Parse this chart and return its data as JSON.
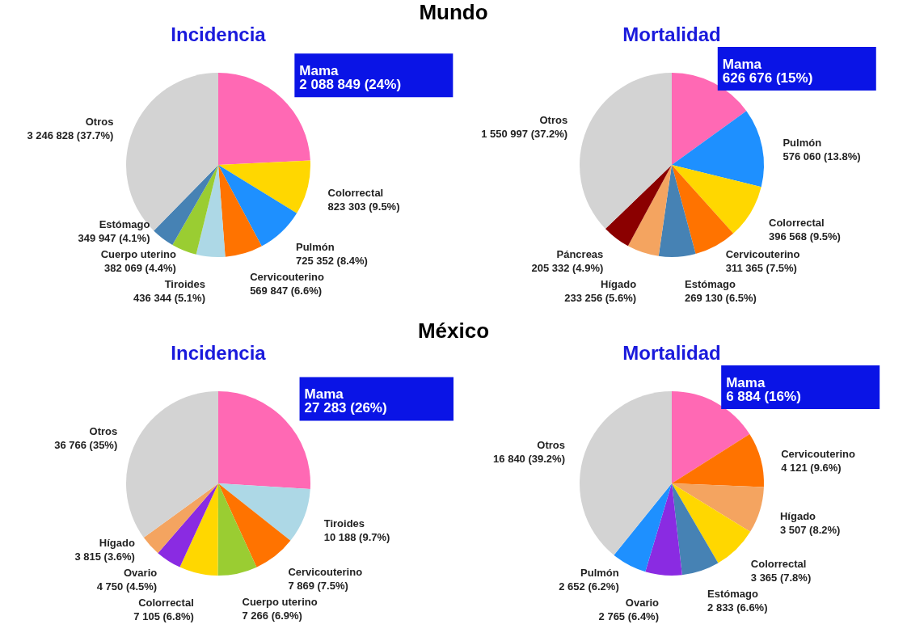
{
  "chart_data": [
    {
      "type": "pie",
      "title": "Incidencia",
      "annotations": [
        "Mundo"
      ],
      "categories": [
        "Mama",
        "Colorrectal",
        "Pulmón",
        "Cervicouterino",
        "Tiroides",
        "Cuerpo uterino",
        "Estómago",
        "Otros"
      ],
      "values": [
        2088849,
        823303,
        725352,
        569847,
        436344,
        382069,
        349947,
        3246828
      ],
      "value_labels": [
        "2 088 849 (24%)",
        "823 303 (9.5%)",
        "725 352 (8.4%)",
        "569 847 (6.6%)",
        "436 344 (5.1%)",
        "382 069 (4.4%)",
        "349 947 (4.1%)",
        "3 246 828 (37.7%)"
      ],
      "colors": [
        "#ff69b4",
        "#ffd700",
        "#1e90ff",
        "#ff7300",
        "#add8e6",
        "#9acd32",
        "#4682b4",
        "#d3d3d3"
      ],
      "legend": false
    },
    {
      "type": "pie",
      "title": "Mortalidad",
      "categories": [
        "Mama",
        "Pulmón",
        "Colorrectal",
        "Cervicouterino",
        "Estómago",
        "Hígado",
        "Páncreas",
        "Otros"
      ],
      "values": [
        626676,
        576060,
        396568,
        311365,
        269130,
        233256,
        205332,
        1550997
      ],
      "value_labels": [
        "626 676 (15%)",
        "576 060 (13.8%)",
        "396 568 (9.5%)",
        "311 365 (7.5%)",
        "269 130 (6.5%)",
        "233 256 (5.6%)",
        "205 332 (4.9%)",
        "1 550 997 (37.2%)"
      ],
      "colors": [
        "#ff69b4",
        "#1e90ff",
        "#ffd700",
        "#ff7300",
        "#4682b4",
        "#f4a460",
        "#8b0000",
        "#d3d3d3"
      ],
      "legend": false
    },
    {
      "type": "pie",
      "title": "Incidencia",
      "annotations": [
        "México"
      ],
      "categories": [
        "Mama",
        "Tiroides",
        "Cervicouterino",
        "Cuerpo uterino",
        "Colorrectal",
        "Ovario",
        "Hígado",
        "Otros"
      ],
      "values": [
        27283,
        10188,
        7869,
        7266,
        7105,
        4750,
        3815,
        36766
      ],
      "value_labels": [
        "27 283 (26%)",
        "10 188 (9.7%)",
        "7 869 (7.5%)",
        "7 266 (6.9%)",
        "7 105 (6.8%)",
        "4 750 (4.5%)",
        "3 815 (3.6%)",
        "36 766 (35%)"
      ],
      "colors": [
        "#ff69b4",
        "#add8e6",
        "#ff7300",
        "#9acd32",
        "#ffd700",
        "#8a2be2",
        "#f4a460",
        "#d3d3d3"
      ],
      "legend": false
    },
    {
      "type": "pie",
      "title": "Mortalidad",
      "categories": [
        "Mama",
        "Cervicouterino",
        "Hígado",
        "Colorrectal",
        "Estómago",
        "Ovario",
        "Pulmón",
        "Otros"
      ],
      "values": [
        6884,
        4121,
        3507,
        3365,
        2833,
        2765,
        2652,
        16840
      ],
      "value_labels": [
        "6 884 (16%)",
        "4 121 (9.6%)",
        "3 507 (8.2%)",
        "3 365 (7.8%)",
        "2 833 (6.6%)",
        "2 765 (6.4%)",
        "2 652 (6.2%)",
        "16 840 (39.2%)"
      ],
      "colors": [
        "#ff69b4",
        "#ff7300",
        "#f4a460",
        "#ffd700",
        "#4682b4",
        "#8a2be2",
        "#1e90ff",
        "#d3d3d3"
      ],
      "legend": false
    }
  ]
}
